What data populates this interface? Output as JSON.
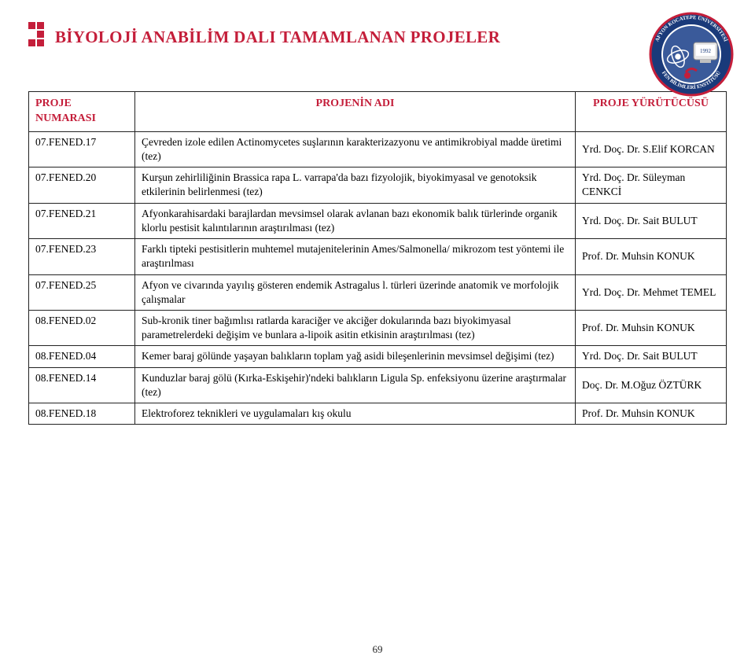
{
  "title": "BİYOLOJİ ANABİLİM DALI TAMAMLANAN PROJELER",
  "colors": {
    "accent": "#c41e3a",
    "border": "#222222",
    "text": "#222222",
    "background": "#ffffff"
  },
  "table": {
    "headers": {
      "code": "PROJE NUMARASI",
      "name": "PROJENİN ADI",
      "exec": "PROJE YÜRÜTÜCÜSÜ"
    },
    "rows": [
      {
        "code": "07.FENED.17",
        "name": "Çevreden izole edilen Actinomycetes suşlarının karakterizazyonu ve antimikrobiyal madde üretimi  (tez)",
        "exec": "Yrd. Doç. Dr. S.Elif KORCAN"
      },
      {
        "code": "07.FENED.20",
        "name": "Kurşun zehirliliğinin Brassica rapa L. varrapa'da bazı fizyolojik, biyokimyasal ve genotoksik etkilerinin belirlenmesi (tez)",
        "exec": "Yrd. Doç. Dr. Süleyman CENKCİ"
      },
      {
        "code": "07.FENED.21",
        "name": "Afyonkarahisardaki barajlardan mevsimsel olarak avlanan bazı ekonomik balık türlerinde organik klorlu pestisit kalıntılarının araştırılması (tez)",
        "exec": "Yrd. Doç. Dr. Sait BULUT"
      },
      {
        "code": "07.FENED.23",
        "name": "Farklı tipteki pestisitlerin muhtemel mutajenitelerinin Ames/Salmonella/ mikrozom test yöntemi ile araştırılması",
        "exec": "Prof. Dr. Muhsin KONUK"
      },
      {
        "code": "07.FENED.25",
        "name": "Afyon ve civarında yayılış gösteren endemik Astragalus l. türleri üzerinde anatomik ve morfolojik çalışmalar",
        "exec": "Yrd. Doç. Dr. Mehmet TEMEL"
      },
      {
        "code": "08.FENED.02",
        "name": "Sub-kronik tiner bağımlısı ratlarda karaciğer ve akciğer dokularında bazı biyokimyasal parametrelerdeki değişim ve bunlara a-lipoik asitin etkisinin araştırılması (tez)",
        "exec": "Prof. Dr. Muhsin KONUK"
      },
      {
        "code": "08.FENED.04",
        "name": "Kemer baraj gölünde yaşayan balıkların toplam yağ asidi bileşenlerinin mevsimsel değişimi (tez)",
        "exec": "Yrd. Doç. Dr. Sait BULUT"
      },
      {
        "code": "08.FENED.14",
        "name": "Kunduzlar baraj gölü (Kırka-Eskişehir)'ndeki balıkların Ligula Sp. enfeksiyonu üzerine araştırmalar (tez)",
        "exec": "Doç. Dr. M.Oğuz ÖZTÜRK"
      },
      {
        "code": "08.FENED.18",
        "name": "Elektroforez teknikleri ve uygulamaları kış okulu",
        "exec": "Prof. Dr. Muhsin KONUK"
      }
    ]
  },
  "page_number": "69",
  "logo": {
    "name": "institute-logo",
    "year": "1992"
  }
}
